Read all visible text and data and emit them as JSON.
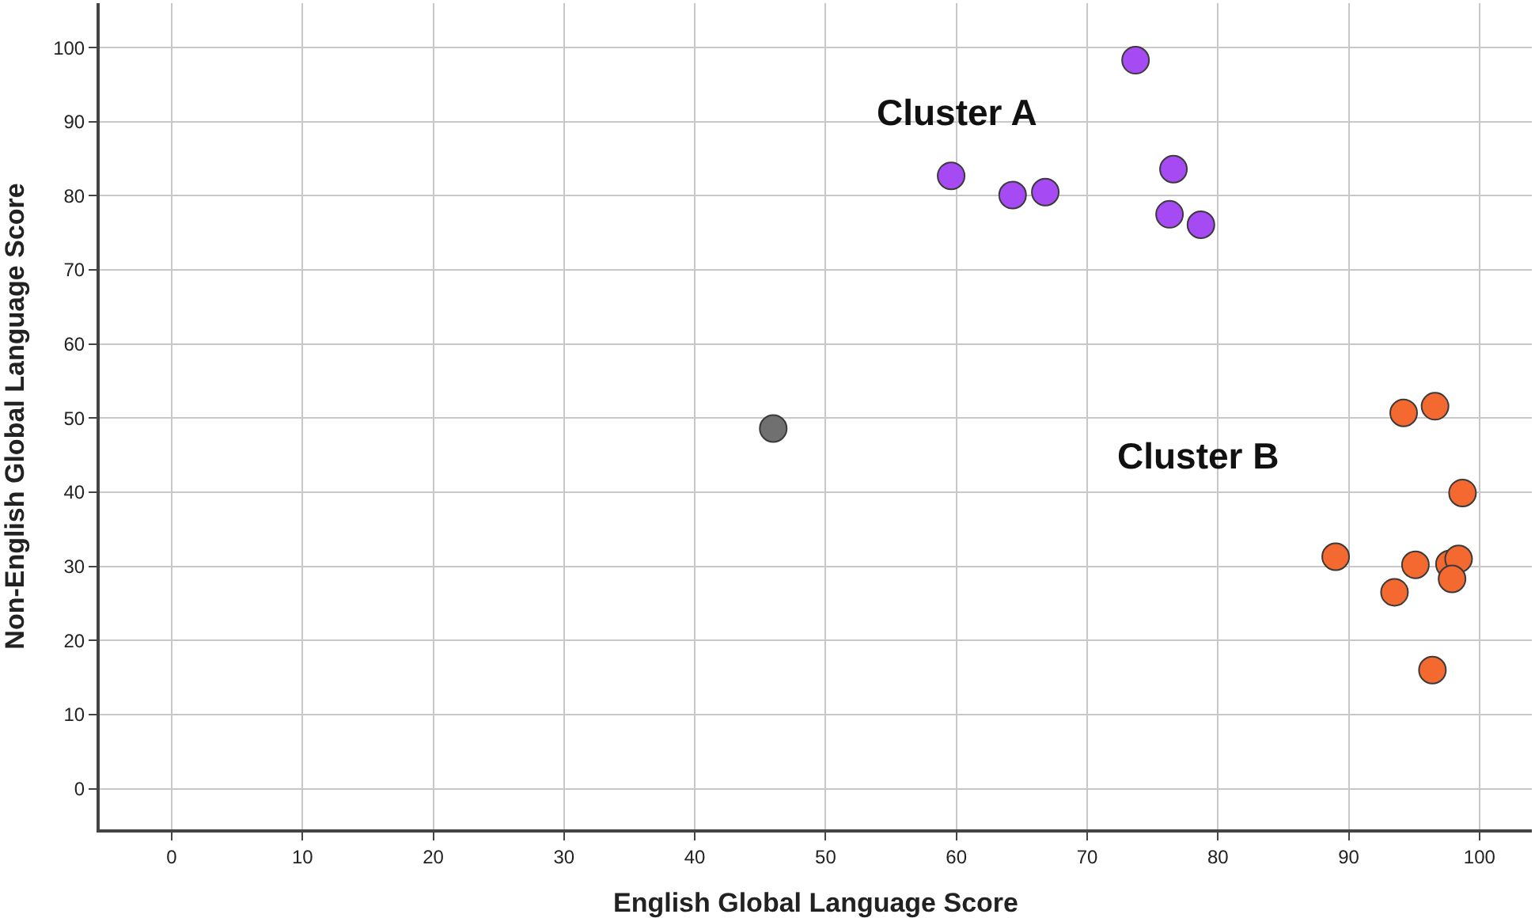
{
  "chart_data": {
    "type": "scatter",
    "xlabel": "English Global Language Score",
    "ylabel": "Non-English Global Language Score",
    "xlim": [
      -5.5,
      104
    ],
    "ylim": [
      -5.5,
      106
    ],
    "xticks": [
      0,
      10,
      20,
      30,
      40,
      50,
      60,
      70,
      80,
      90,
      100
    ],
    "yticks": [
      0,
      10,
      20,
      30,
      40,
      50,
      60,
      70,
      80,
      90,
      100
    ],
    "grid": true,
    "legend": false,
    "marker": "circle",
    "series": [
      {
        "name": "Cluster A",
        "color": "#a64bf4",
        "x": [
          73.7,
          59.6,
          64.3,
          66.8,
          76.6,
          76.3,
          78.7
        ],
        "values": [
          98.3,
          82.7,
          80.1,
          80.5,
          83.6,
          77.5,
          76.1
        ]
      },
      {
        "color": "#707070",
        "x": [
          46.0
        ],
        "values": [
          48.6
        ]
      },
      {
        "name": "Cluster B",
        "color": "#f4692f",
        "x": [
          94.2,
          96.6,
          98.7,
          89.0,
          95.1,
          97.7,
          98.4,
          97.9,
          93.5,
          96.4
        ],
        "values": [
          50.7,
          51.6,
          39.9,
          31.3,
          30.2,
          30.3,
          31.0,
          28.3,
          26.5,
          16.0
        ]
      }
    ]
  }
}
